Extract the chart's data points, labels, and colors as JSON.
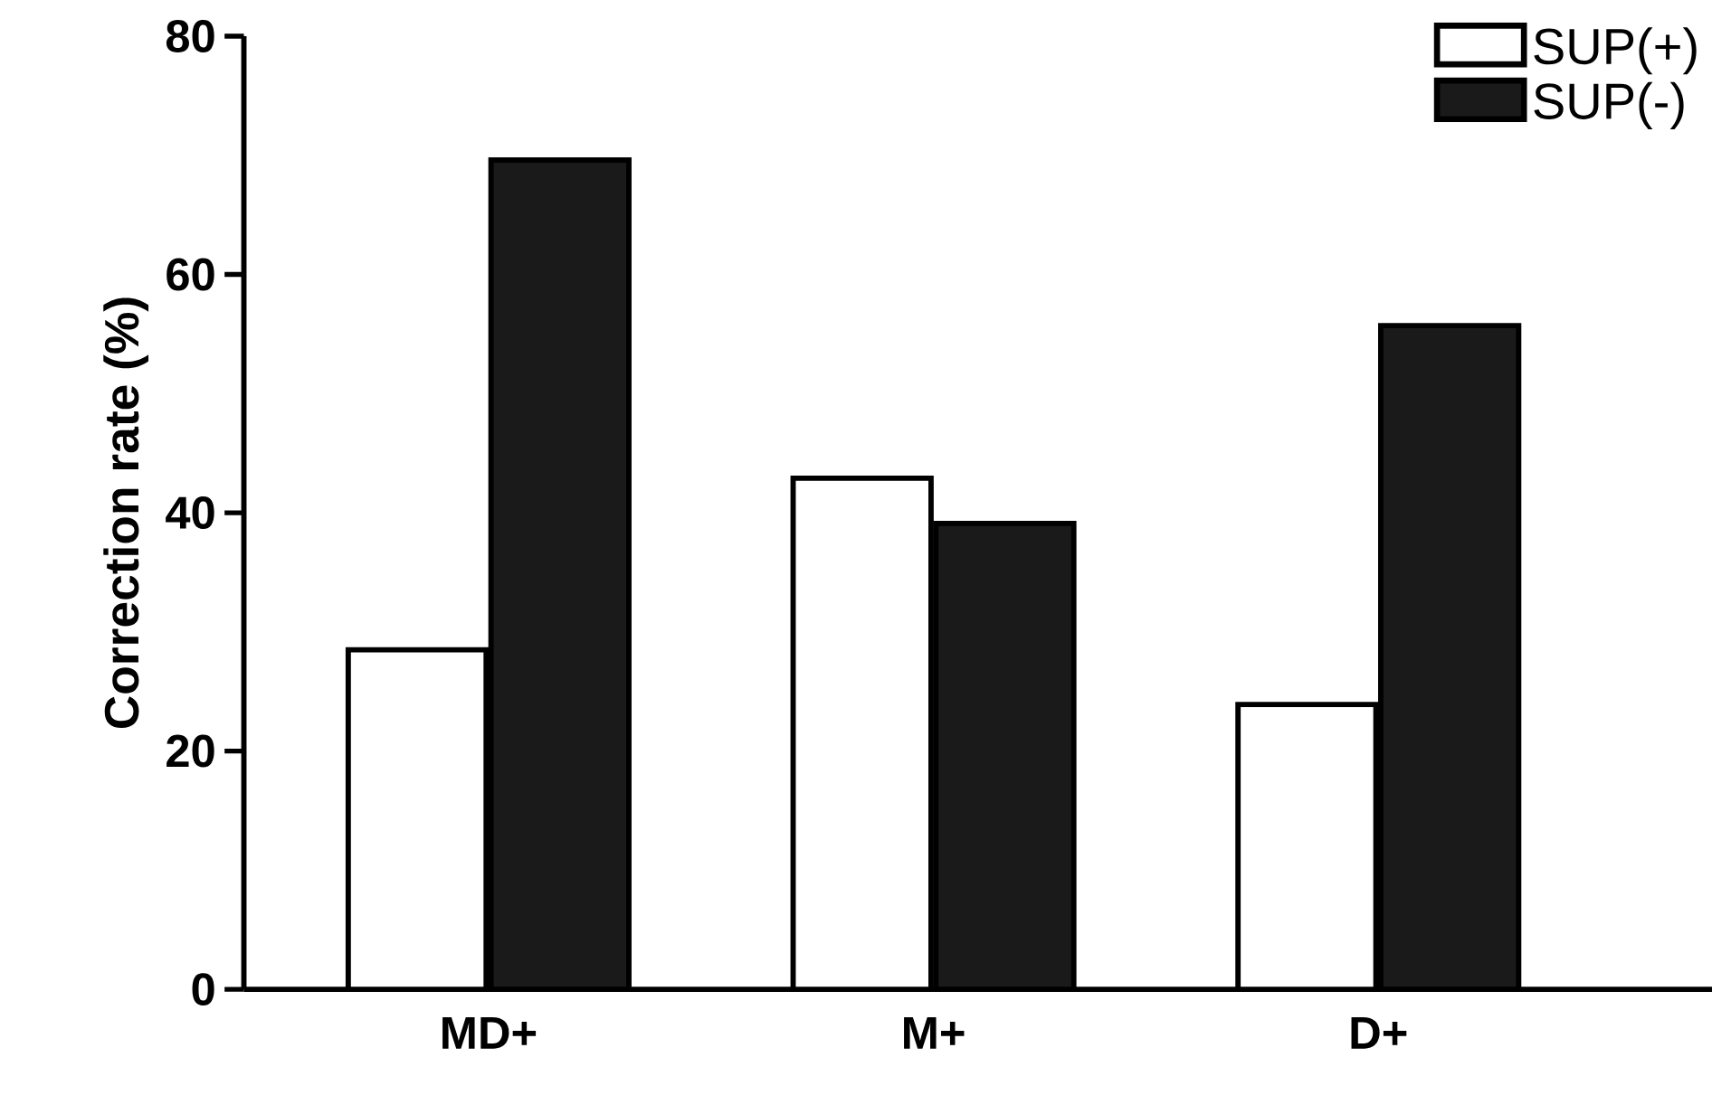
{
  "chart_data": {
    "type": "bar",
    "ylabel": "Correction rate (%)",
    "categories": [
      "MD+",
      "M+",
      "D+"
    ],
    "series": [
      {
        "name": "SUP(+)",
        "color": "#ffffff",
        "values": [
          28.5,
          42.9,
          23.9
        ]
      },
      {
        "name": "SUP(-)",
        "color": "#1a1a1a",
        "values": [
          69.6,
          39.1,
          55.7
        ]
      }
    ],
    "ylim": [
      0,
      80
    ],
    "yticks": [
      0,
      20,
      40,
      60,
      80
    ],
    "legend": "top right"
  }
}
